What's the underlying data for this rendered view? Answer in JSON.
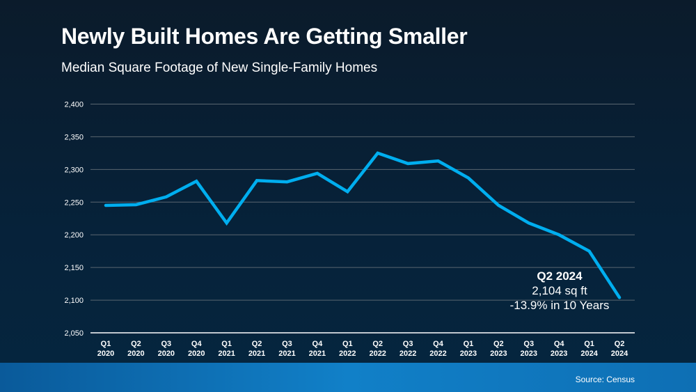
{
  "chart_data": {
    "type": "line",
    "title": "Newly Built Homes Are Getting Smaller",
    "subtitle": "Median Square Footage of New Single-Family Homes",
    "categories": [
      [
        "Q1",
        "2020"
      ],
      [
        "Q2",
        "2020"
      ],
      [
        "Q3",
        "2020"
      ],
      [
        "Q4",
        "2020"
      ],
      [
        "Q1",
        "2021"
      ],
      [
        "Q2",
        "2021"
      ],
      [
        "Q3",
        "2021"
      ],
      [
        "Q4",
        "2021"
      ],
      [
        "Q1",
        "2022"
      ],
      [
        "Q2",
        "2022"
      ],
      [
        "Q3",
        "2022"
      ],
      [
        "Q4",
        "2022"
      ],
      [
        "Q1",
        "2023"
      ],
      [
        "Q2",
        "2023"
      ],
      [
        "Q3",
        "2023"
      ],
      [
        "Q4",
        "2023"
      ],
      [
        "Q1",
        "2024"
      ],
      [
        "Q2",
        "2024"
      ]
    ],
    "values": [
      2245,
      2246,
      2258,
      2282,
      2218,
      2283,
      2281,
      2294,
      2266,
      2325,
      2309,
      2313,
      2287,
      2245,
      2218,
      2200,
      2175,
      2104
    ],
    "ylim": [
      2050,
      2400
    ],
    "yticks": [
      "2,050",
      "2,100",
      "2,150",
      "2,200",
      "2,250",
      "2,300",
      "2,350",
      "2,400"
    ],
    "ytick_values": [
      2050,
      2100,
      2150,
      2200,
      2250,
      2300,
      2350,
      2400
    ],
    "grid": true,
    "line_color": "#00aeef",
    "annotation": {
      "line1": "Q2 2024",
      "line2": "2,104 sq ft",
      "line3": "-13.9% in 10 Years"
    },
    "source": "Source: Census"
  }
}
